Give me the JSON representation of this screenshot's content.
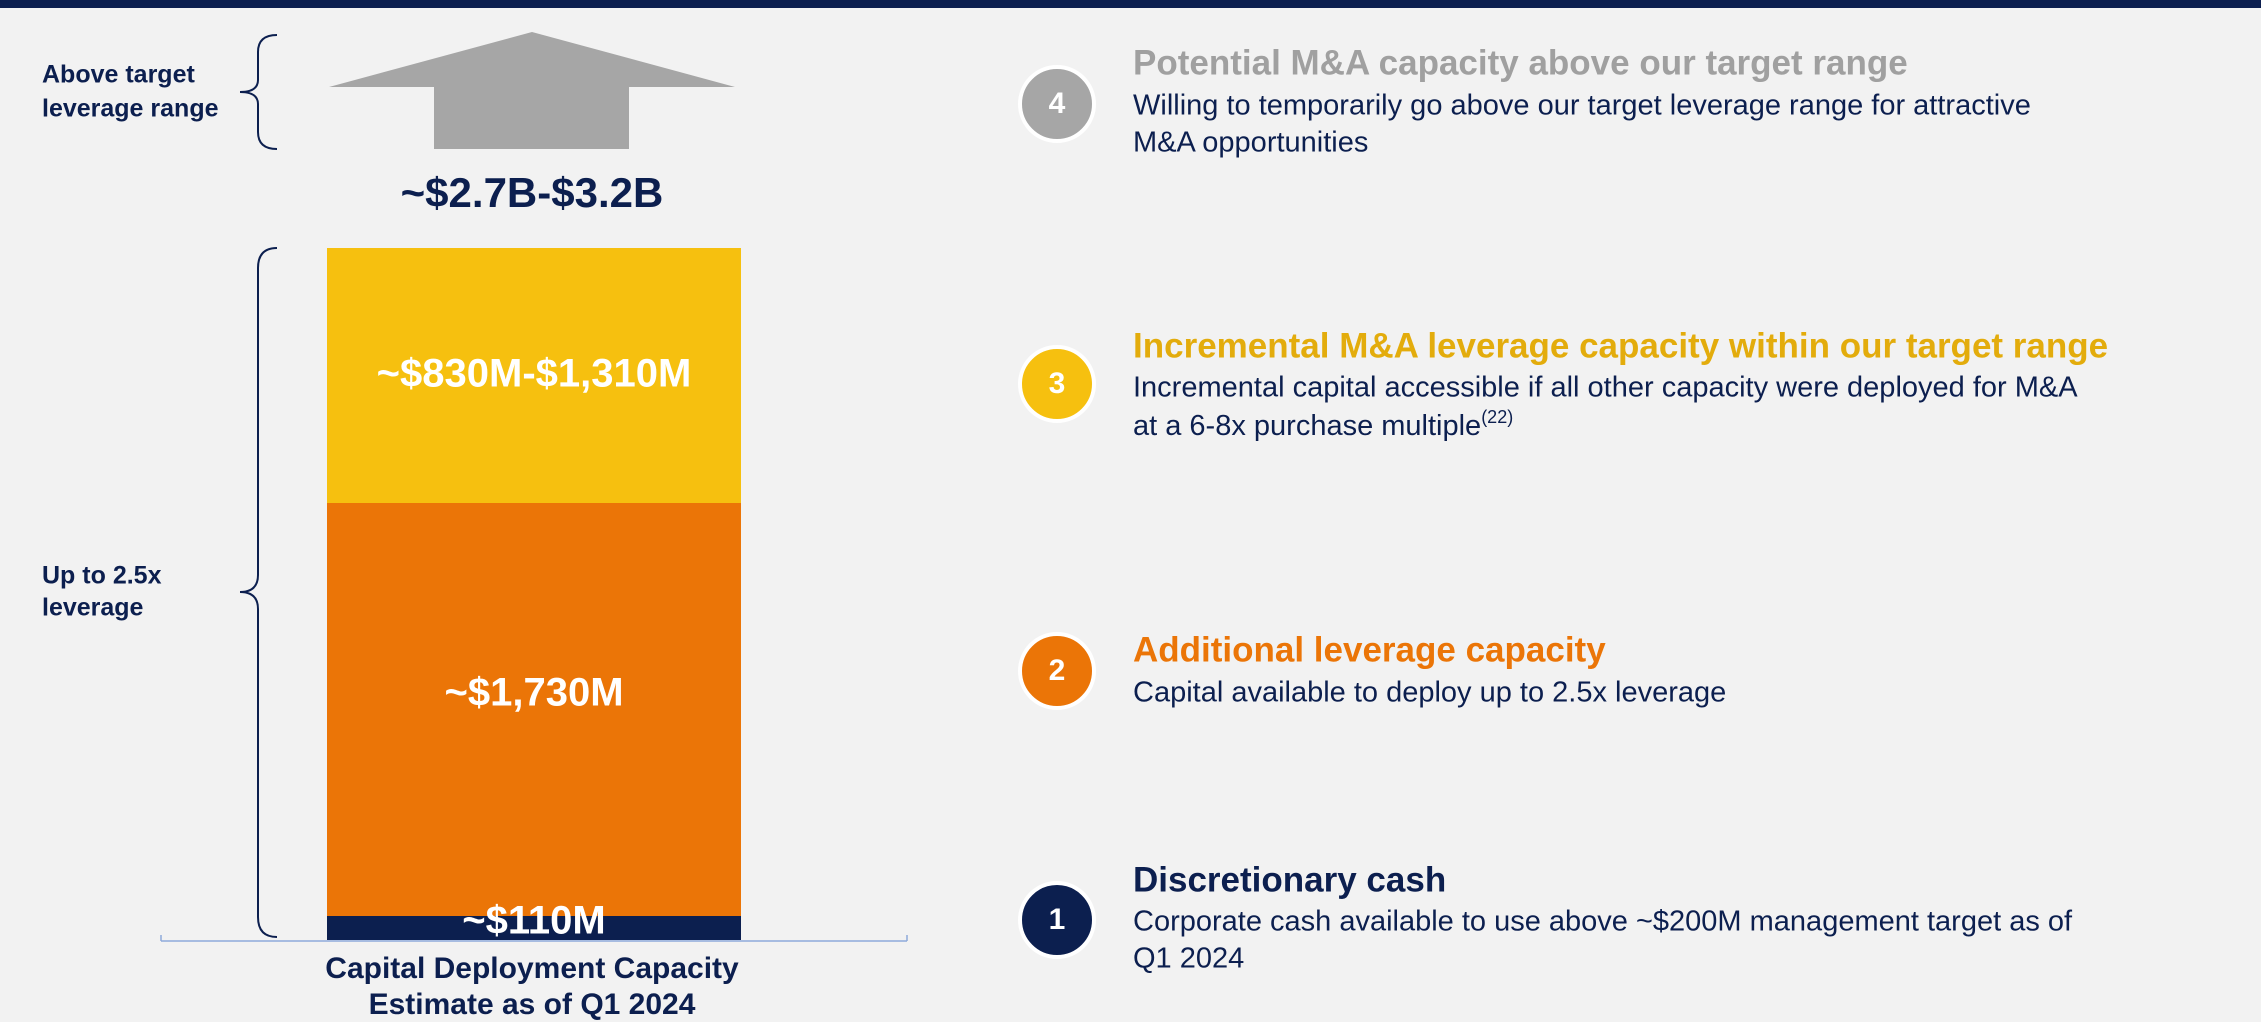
{
  "bar": {
    "top_label": "~$2.7B-$3.2B",
    "segments": [
      {
        "label": "~$110M"
      },
      {
        "label": "~$1,730M"
      },
      {
        "label": "~$830M-$1,310M"
      }
    ],
    "caption_lines": [
      "Capital Deployment Capacity",
      "Estimate as of Q1 2024"
    ]
  },
  "brackets": [
    {
      "label_lines": [
        "Above target",
        "leverage range"
      ]
    },
    {
      "label_lines": [
        "Up to 2.5x",
        "leverage"
      ]
    }
  ],
  "items": [
    {
      "number": "4",
      "title": "Potential M&A capacity above our target range",
      "desc_lines": [
        "Willing to temporarily go above our target leverage range for attractive",
        "M&A opportunities"
      ]
    },
    {
      "number": "3",
      "title": "Incremental M&A leverage capacity within our target range",
      "desc_lines": [
        "Incremental capital accessible if all other capacity were deployed for M&A",
        "at a 6-8x purchase multiple"
      ],
      "note": "(22)"
    },
    {
      "number": "2",
      "title": "Additional leverage capacity",
      "desc_lines": [
        "Capital available to deploy up to 2.5x leverage"
      ]
    },
    {
      "number": "1",
      "title": "Discretionary cash",
      "desc_lines": [
        "Corporate cash available to use above ~$200M management target as of",
        "Q1 2024"
      ]
    }
  ]
}
